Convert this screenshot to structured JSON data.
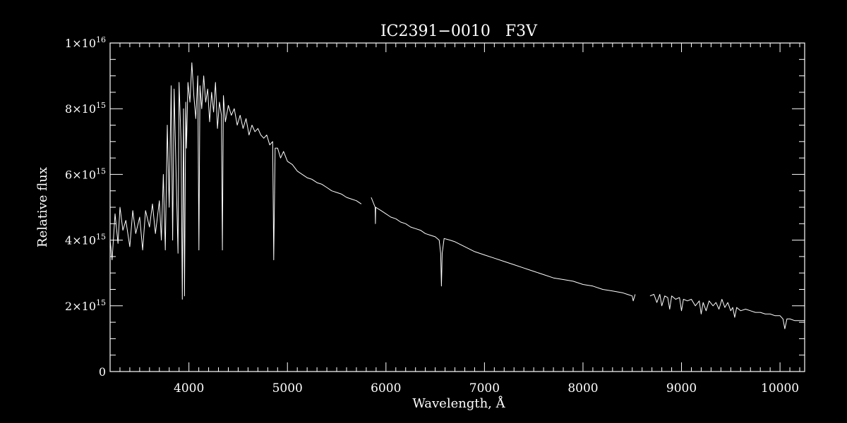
{
  "chart_data": {
    "type": "line",
    "title": "IC2391−0010   F3V",
    "xlabel": "Wavelength, Å",
    "ylabel": "Relative flux",
    "xlim": [
      3200,
      10250
    ],
    "ylim": [
      0,
      1e+16
    ],
    "x_ticks": [
      {
        "value": 4000,
        "label": "4000"
      },
      {
        "value": 5000,
        "label": "5000"
      },
      {
        "value": 6000,
        "label": "6000"
      },
      {
        "value": 7000,
        "label": "7000"
      },
      {
        "value": 8000,
        "label": "8000"
      },
      {
        "value": 9000,
        "label": "9000"
      },
      {
        "value": 10000,
        "label": "10000"
      }
    ],
    "y_ticks": [
      {
        "value": 0,
        "mantissa": "0",
        "exponent": ""
      },
      {
        "value": 2000000000000000.0,
        "mantissa": "2×10",
        "exponent": "15"
      },
      {
        "value": 4000000000000000.0,
        "mantissa": "4×10",
        "exponent": "15"
      },
      {
        "value": 6000000000000000.0,
        "mantissa": "6×10",
        "exponent": "15"
      },
      {
        "value": 8000000000000000.0,
        "mantissa": "8×10",
        "exponent": "15"
      },
      {
        "value": 1e+16,
        "mantissa": "1×10",
        "exponent": "16"
      }
    ],
    "x_minor_step": 100,
    "y_minor_step": 500000000000000.0,
    "grid": false,
    "line_color": "#ffffff",
    "background": "#000000",
    "series": [
      {
        "segments": [
          {
            "x": [
              3200,
              3220,
              3250,
              3280,
              3300,
              3330,
              3360,
              3400,
              3430,
              3460,
              3500,
              3530,
              3560,
              3600,
              3630,
              3660,
              3700,
              3720,
              3740,
              3760,
              3780,
              3800,
              3820,
              3835,
              3850,
              3870,
              3889,
              3900,
              3920,
              3933,
              3945,
              3955,
              3968,
              3975,
              3990,
              4010,
              4030,
              4050,
              4070,
              4090,
              4101,
              4112,
              4130,
              4150,
              4170,
              4190,
              4210,
              4230,
              4250,
              4270,
              4290,
              4310,
              4330,
              4340,
              4350,
              4370,
              4400,
              4430,
              4460,
              4490,
              4520,
              4550,
              4580,
              4610,
              4640,
              4670,
              4700,
              4730,
              4760,
              4790,
              4820,
              4850,
              4861,
              4875,
              4900,
              4930,
              4960,
              5000,
              5050,
              5100,
              5150,
              5200,
              5250,
              5300,
              5350,
              5400,
              5450,
              5500,
              5550,
              5600,
              5650,
              5700,
              5750
            ],
            "y": [
              4000000000000000.0,
              3400000000000000.0,
              4800000000000000.0,
              3900000000000000.0,
              5000000000000000.0,
              4300000000000000.0,
              4600000000000000.0,
              3800000000000000.0,
              4900000000000000.0,
              4200000000000000.0,
              4700000000000000.0,
              3700000000000000.0,
              4900000000000000.0,
              4400000000000000.0,
              5100000000000000.0,
              4200000000000000.0,
              5200000000000000.0,
              4000000000000000.0,
              6000000000000000.0,
              3700000000000000.0,
              7500000000000000.0,
              5000000000000000.0,
              8700000000000000.0,
              4000000000000000.0,
              8600000000000000.0,
              6000000000000000.0,
              3600000000000000.0,
              8800000000000000.0,
              7000000000000000.0,
              2200000000000000.0,
              8000000000000000.0,
              2300000000000000.0,
              8200000000000000.0,
              6800000000000000.0,
              8800000000000000.0,
              8200000000000000.0,
              9400000000000000.0,
              8400000000000000.0,
              7700000000000000.0,
              9000000000000000.0,
              3700000000000000.0,
              8700000000000000.0,
              8000000000000000.0,
              9000000000000000.0,
              8200000000000000.0,
              8600000000000000.0,
              7600000000000000.0,
              8500000000000000.0,
              7900000000000000.0,
              8800000000000000.0,
              7400000000000000.0,
              8200000000000000.0,
              7800000000000000.0,
              3700000000000000.0,
              8400000000000000.0,
              7600000000000000.0,
              8100000000000000.0,
              7800000000000000.0,
              8000000000000000.0,
              7500000000000000.0,
              7800000000000000.0,
              7400000000000000.0,
              7700000000000000.0,
              7200000000000000.0,
              7500000000000000.0,
              7300000000000000.0,
              7400000000000000.0,
              7200000000000000.0,
              7100000000000000.0,
              7200000000000000.0,
              6900000000000000.0,
              7000000000000000.0,
              3400000000000000.0,
              6800000000000000.0,
              6800000000000000.0,
              6500000000000000.0,
              6700000000000000.0,
              6400000000000000.0,
              6300000000000000.0,
              6100000000000000.0,
              6000000000000000.0,
              5900000000000000.0,
              5850000000000000.0,
              5750000000000000.0,
              5700000000000000.0,
              5600000000000000.0,
              5500000000000000.0,
              5450000000000000.0,
              5400000000000000.0,
              5300000000000000.0,
              5250000000000000.0,
              5200000000000000.0,
              5100000000000000.0
            ]
          },
          {
            "x": [
              5850,
              5890,
              5893,
              5896,
              5950,
              6000,
              6050,
              6100,
              6150,
              6200,
              6250,
              6300,
              6350,
              6400,
              6450,
              6500,
              6540,
              6555,
              6563,
              6571,
              6590,
              6650,
              6700,
              6800,
              6900,
              7000,
              7100,
              7200,
              7300,
              7400,
              7500,
              7600,
              7700,
              7800,
              7900,
              8000,
              8100,
              8200,
              8300,
              8400,
              8500,
              8510,
              8530
            ],
            "y": [
              5300000000000000.0,
              5000000000000000.0,
              4500000000000000.0,
              5000000000000000.0,
              4900000000000000.0,
              4800000000000000.0,
              4700000000000000.0,
              4650000000000000.0,
              4550000000000000.0,
              4500000000000000.0,
              4400000000000000.0,
              4350000000000000.0,
              4300000000000000.0,
              4200000000000000.0,
              4150000000000000.0,
              4100000000000000.0,
              4000000000000000.0,
              3600000000000000.0,
              2600000000000000.0,
              3600000000000000.0,
              4050000000000000.0,
              4000000000000000.0,
              3950000000000000.0,
              3800000000000000.0,
              3650000000000000.0,
              3550000000000000.0,
              3450000000000000.0,
              3350000000000000.0,
              3250000000000000.0,
              3150000000000000.0,
              3050000000000000.0,
              2950000000000000.0,
              2850000000000000.0,
              2800000000000000.0,
              2750000000000000.0,
              2650000000000000.0,
              2600000000000000.0,
              2500000000000000.0,
              2450000000000000.0,
              2400000000000000.0,
              2300000000000000.0,
              2150000000000000.0,
              2350000000000000.0
            ]
          },
          {
            "x": [
              8680,
              8720,
              8750,
              8780,
              8800,
              8830,
              8860,
              8880,
              8900,
              8940,
              8980,
              9000,
              9020,
              9060,
              9100,
              9140,
              9180,
              9200,
              9220,
              9250,
              9280,
              9320,
              9350,
              9380,
              9410,
              9440,
              9470,
              9500,
              9520,
              9540,
              9560,
              9600,
              9650,
              9700,
              9750,
              9800,
              9850,
              9900,
              9950,
              10000,
              10030,
              10049,
              10070,
              10100,
              10150,
              10200,
              10250
            ],
            "y": [
              2300000000000000.0,
              2350000000000000.0,
              2100000000000000.0,
              2350000000000000.0,
              2000000000000000.0,
              2300000000000000.0,
              2250000000000000.0,
              1900000000000000.0,
              2300000000000000.0,
              2200000000000000.0,
              2250000000000000.0,
              1850000000000000.0,
              2200000000000000.0,
              2150000000000000.0,
              2200000000000000.0,
              2000000000000000.0,
              2150000000000000.0,
              1750000000000000.0,
              2100000000000000.0,
              1850000000000000.0,
              2150000000000000.0,
              2000000000000000.0,
              2100000000000000.0,
              1900000000000000.0,
              2200000000000000.0,
              1950000000000000.0,
              2100000000000000.0,
              1850000000000000.0,
              1950000000000000.0,
              1650000000000000.0,
              1950000000000000.0,
              1850000000000000.0,
              1900000000000000.0,
              1850000000000000.0,
              1800000000000000.0,
              1800000000000000.0,
              1750000000000000.0,
              1750000000000000.0,
              1700000000000000.0,
              1700000000000000.0,
              1600000000000000.0,
              1300000000000000.0,
              1600000000000000.0,
              1600000000000000.0,
              1550000000000000.0,
              1550000000000000.0,
              1550000000000000.0
            ]
          }
        ]
      }
    ]
  }
}
